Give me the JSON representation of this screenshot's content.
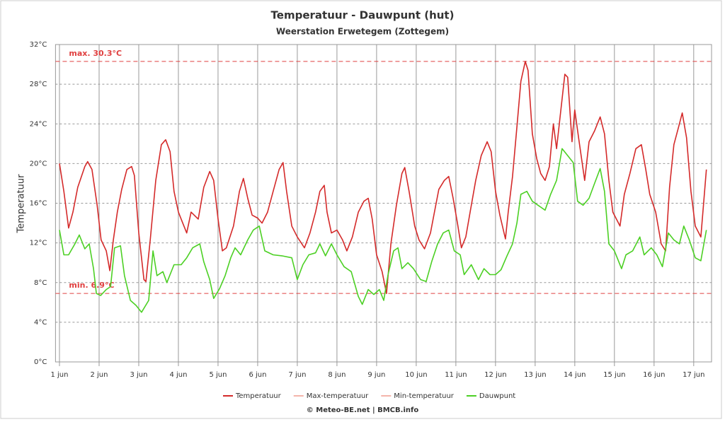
{
  "chart_data": {
    "type": "line",
    "title": "Temperatuur - Dauwpunt (hut)",
    "subtitle": "Weerstation Erwetegem (Zottegem)",
    "y_label": "Temperatuur",
    "footer": "© Meteo-BE.net | BMCB.info",
    "xlim": [
      0.9,
      17.45
    ],
    "xticks": [
      {
        "value": 1,
        "label": "1 jun"
      },
      {
        "value": 2,
        "label": "2 jun"
      },
      {
        "value": 3,
        "label": "3 jun"
      },
      {
        "value": 4,
        "label": "4 jun"
      },
      {
        "value": 5,
        "label": "5 jun"
      },
      {
        "value": 6,
        "label": "6 jun"
      },
      {
        "value": 7,
        "label": "7 jun"
      },
      {
        "value": 8,
        "label": "8 jun"
      },
      {
        "value": 9,
        "label": "9 jun"
      },
      {
        "value": 10,
        "label": "10 jun"
      },
      {
        "value": 11,
        "label": "11 jun"
      },
      {
        "value": 12,
        "label": "12 jun"
      },
      {
        "value": 13,
        "label": "13 jun"
      },
      {
        "value": 14,
        "label": "14 jun"
      },
      {
        "value": 15,
        "label": "15 jun"
      },
      {
        "value": 16,
        "label": "16 jun"
      },
      {
        "value": 17,
        "label": "17 jun"
      }
    ],
    "ylim": [
      0,
      32
    ],
    "yticks": [
      {
        "value": 0,
        "label": "0°C"
      },
      {
        "value": 4,
        "label": "4°C"
      },
      {
        "value": 8,
        "label": "8°C"
      },
      {
        "value": 12,
        "label": "12°C"
      },
      {
        "value": 16,
        "label": "16°C"
      },
      {
        "value": 20,
        "label": "20°C"
      },
      {
        "value": 24,
        "label": "24°C"
      },
      {
        "value": 28,
        "label": "28°C"
      },
      {
        "value": 32,
        "label": "32°C"
      }
    ],
    "grid": true,
    "ref_lines": [
      {
        "value": 30.3,
        "label": "max. 30.3°C",
        "color": "#e04040"
      },
      {
        "value": 6.9,
        "label": "min. 6.9°C",
        "color": "#e04040"
      }
    ],
    "legend_only": [
      {
        "name": "Max-temperatuur",
        "color": "#f4b4aa"
      },
      {
        "name": "Min-temperatuur",
        "color": "#f4b4aa"
      }
    ],
    "series": [
      {
        "name": "Temperatuur",
        "color": "#d42a2a",
        "x": [
          1.0,
          1.11,
          1.23,
          1.34,
          1.46,
          1.64,
          1.71,
          1.82,
          1.95,
          2.05,
          2.18,
          2.27,
          2.36,
          2.46,
          2.57,
          2.7,
          2.82,
          2.89,
          3.0,
          3.13,
          3.18,
          3.29,
          3.43,
          3.57,
          3.68,
          3.79,
          3.89,
          4.0,
          4.11,
          4.21,
          4.32,
          4.5,
          4.64,
          4.79,
          4.89,
          5.0,
          5.11,
          5.21,
          5.39,
          5.54,
          5.64,
          5.75,
          5.86,
          6.0,
          6.11,
          6.25,
          6.39,
          6.54,
          6.64,
          6.73,
          6.86,
          7.0,
          7.18,
          7.32,
          7.46,
          7.57,
          7.68,
          7.75,
          7.86,
          8.0,
          8.14,
          8.25,
          8.39,
          8.54,
          8.68,
          8.79,
          8.89,
          9.0,
          9.14,
          9.25,
          9.36,
          9.5,
          9.64,
          9.71,
          9.82,
          9.96,
          10.07,
          10.21,
          10.36,
          10.46,
          10.57,
          10.71,
          10.82,
          10.93,
          11.04,
          11.14,
          11.25,
          11.36,
          11.5,
          11.64,
          11.79,
          11.89,
          12.0,
          12.11,
          12.25,
          12.32,
          12.43,
          12.54,
          12.64,
          12.75,
          12.82,
          12.93,
          13.04,
          13.14,
          13.25,
          13.36,
          13.46,
          13.54,
          13.64,
          13.75,
          13.82,
          13.93,
          14.0,
          14.11,
          14.25,
          14.36,
          14.5,
          14.64,
          14.75,
          14.86,
          14.96,
          15.14,
          15.25,
          15.39,
          15.54,
          15.68,
          15.79,
          15.89,
          16.04,
          16.18,
          16.29,
          16.39,
          16.5,
          16.64,
          16.71,
          16.82,
          16.93,
          17.04,
          17.18,
          17.32
        ],
        "values": [
          20.0,
          17.2,
          13.5,
          15.1,
          17.6,
          19.7,
          20.2,
          19.4,
          15.8,
          12.3,
          11.2,
          9.2,
          12.3,
          15.1,
          17.4,
          19.4,
          19.7,
          18.8,
          13.0,
          8.3,
          8.1,
          12.3,
          18.3,
          21.9,
          22.4,
          21.2,
          17.2,
          15.1,
          14.0,
          13.0,
          15.1,
          14.4,
          17.6,
          19.2,
          18.3,
          14.4,
          11.2,
          11.5,
          13.7,
          17.2,
          18.5,
          16.5,
          14.8,
          14.5,
          14.0,
          15.1,
          17.2,
          19.4,
          20.1,
          17.2,
          13.7,
          12.6,
          11.5,
          13.0,
          15.1,
          17.2,
          17.8,
          15.1,
          13.0,
          13.3,
          12.3,
          11.2,
          12.6,
          15.1,
          16.2,
          16.5,
          14.4,
          10.8,
          9.1,
          6.9,
          11.9,
          15.8,
          19.0,
          19.6,
          17.2,
          13.7,
          12.3,
          11.4,
          13.0,
          15.1,
          17.4,
          18.3,
          18.7,
          16.5,
          14.0,
          11.5,
          12.6,
          15.1,
          18.3,
          20.8,
          22.2,
          21.2,
          17.2,
          14.8,
          12.4,
          15.1,
          18.7,
          23.7,
          28.3,
          30.3,
          29.4,
          23.0,
          20.5,
          19.0,
          18.3,
          19.7,
          24.0,
          21.5,
          25.1,
          29.0,
          28.7,
          22.2,
          25.4,
          22.2,
          18.3,
          22.2,
          23.3,
          24.7,
          23.0,
          18.3,
          15.1,
          13.7,
          16.9,
          19.0,
          21.5,
          21.9,
          19.4,
          16.9,
          15.1,
          11.9,
          11.2,
          17.6,
          21.9,
          24.0,
          25.1,
          22.6,
          17.2,
          13.7,
          12.6,
          19.4
        ]
      },
      {
        "name": "Dauwpunt",
        "color": "#4cd024",
        "x": [
          1.0,
          1.11,
          1.23,
          1.39,
          1.5,
          1.64,
          1.75,
          1.86,
          1.93,
          2.04,
          2.18,
          2.29,
          2.39,
          2.54,
          2.64,
          2.79,
          2.93,
          3.07,
          3.25,
          3.36,
          3.46,
          3.61,
          3.71,
          3.89,
          4.07,
          4.21,
          4.36,
          4.54,
          4.64,
          4.79,
          4.89,
          5.04,
          5.18,
          5.32,
          5.43,
          5.57,
          5.75,
          5.89,
          6.04,
          6.18,
          6.39,
          6.61,
          6.86,
          7.0,
          7.14,
          7.29,
          7.46,
          7.57,
          7.71,
          7.86,
          8.0,
          8.18,
          8.36,
          8.54,
          8.64,
          8.79,
          8.93,
          9.07,
          9.18,
          9.29,
          9.43,
          9.54,
          9.64,
          9.79,
          9.93,
          10.11,
          10.25,
          10.39,
          10.54,
          10.68,
          10.82,
          10.96,
          11.11,
          11.21,
          11.39,
          11.57,
          11.71,
          11.86,
          12.0,
          12.14,
          12.29,
          12.43,
          12.54,
          12.64,
          12.79,
          12.93,
          13.07,
          13.25,
          13.39,
          13.54,
          13.68,
          13.82,
          13.96,
          14.07,
          14.21,
          14.36,
          14.5,
          14.64,
          14.75,
          14.86,
          15.0,
          15.18,
          15.29,
          15.46,
          15.64,
          15.75,
          15.93,
          16.07,
          16.21,
          16.36,
          16.5,
          16.64,
          16.75,
          16.89,
          17.04,
          17.18,
          17.32
        ],
        "values": [
          13.3,
          10.8,
          10.8,
          11.9,
          12.8,
          11.4,
          11.9,
          9.4,
          6.9,
          6.7,
          7.3,
          7.6,
          11.5,
          11.7,
          8.7,
          6.2,
          5.7,
          5.0,
          6.2,
          11.2,
          8.7,
          9.1,
          8.0,
          9.8,
          9.8,
          10.5,
          11.5,
          11.9,
          10.1,
          8.3,
          6.4,
          7.4,
          8.7,
          10.5,
          11.5,
          10.8,
          12.3,
          13.3,
          13.7,
          11.2,
          10.8,
          10.7,
          10.5,
          8.3,
          9.8,
          10.8,
          11.0,
          11.9,
          10.7,
          11.9,
          10.8,
          9.6,
          9.1,
          6.6,
          5.8,
          7.3,
          6.8,
          7.3,
          6.2,
          8.8,
          11.2,
          11.5,
          9.4,
          10.0,
          9.4,
          8.3,
          8.1,
          10.1,
          11.9,
          13.0,
          13.3,
          11.2,
          10.8,
          8.8,
          9.8,
          8.3,
          9.4,
          8.8,
          8.8,
          9.3,
          10.7,
          11.9,
          14.0,
          16.9,
          17.2,
          16.2,
          15.8,
          15.3,
          16.9,
          18.3,
          21.5,
          20.8,
          20.1,
          16.2,
          15.8,
          16.5,
          18.0,
          19.5,
          17.2,
          11.9,
          11.2,
          9.4,
          10.8,
          11.2,
          12.6,
          10.8,
          11.5,
          10.8,
          9.6,
          13.0,
          12.3,
          11.9,
          13.7,
          12.3,
          10.5,
          10.2,
          13.3
        ]
      }
    ]
  }
}
